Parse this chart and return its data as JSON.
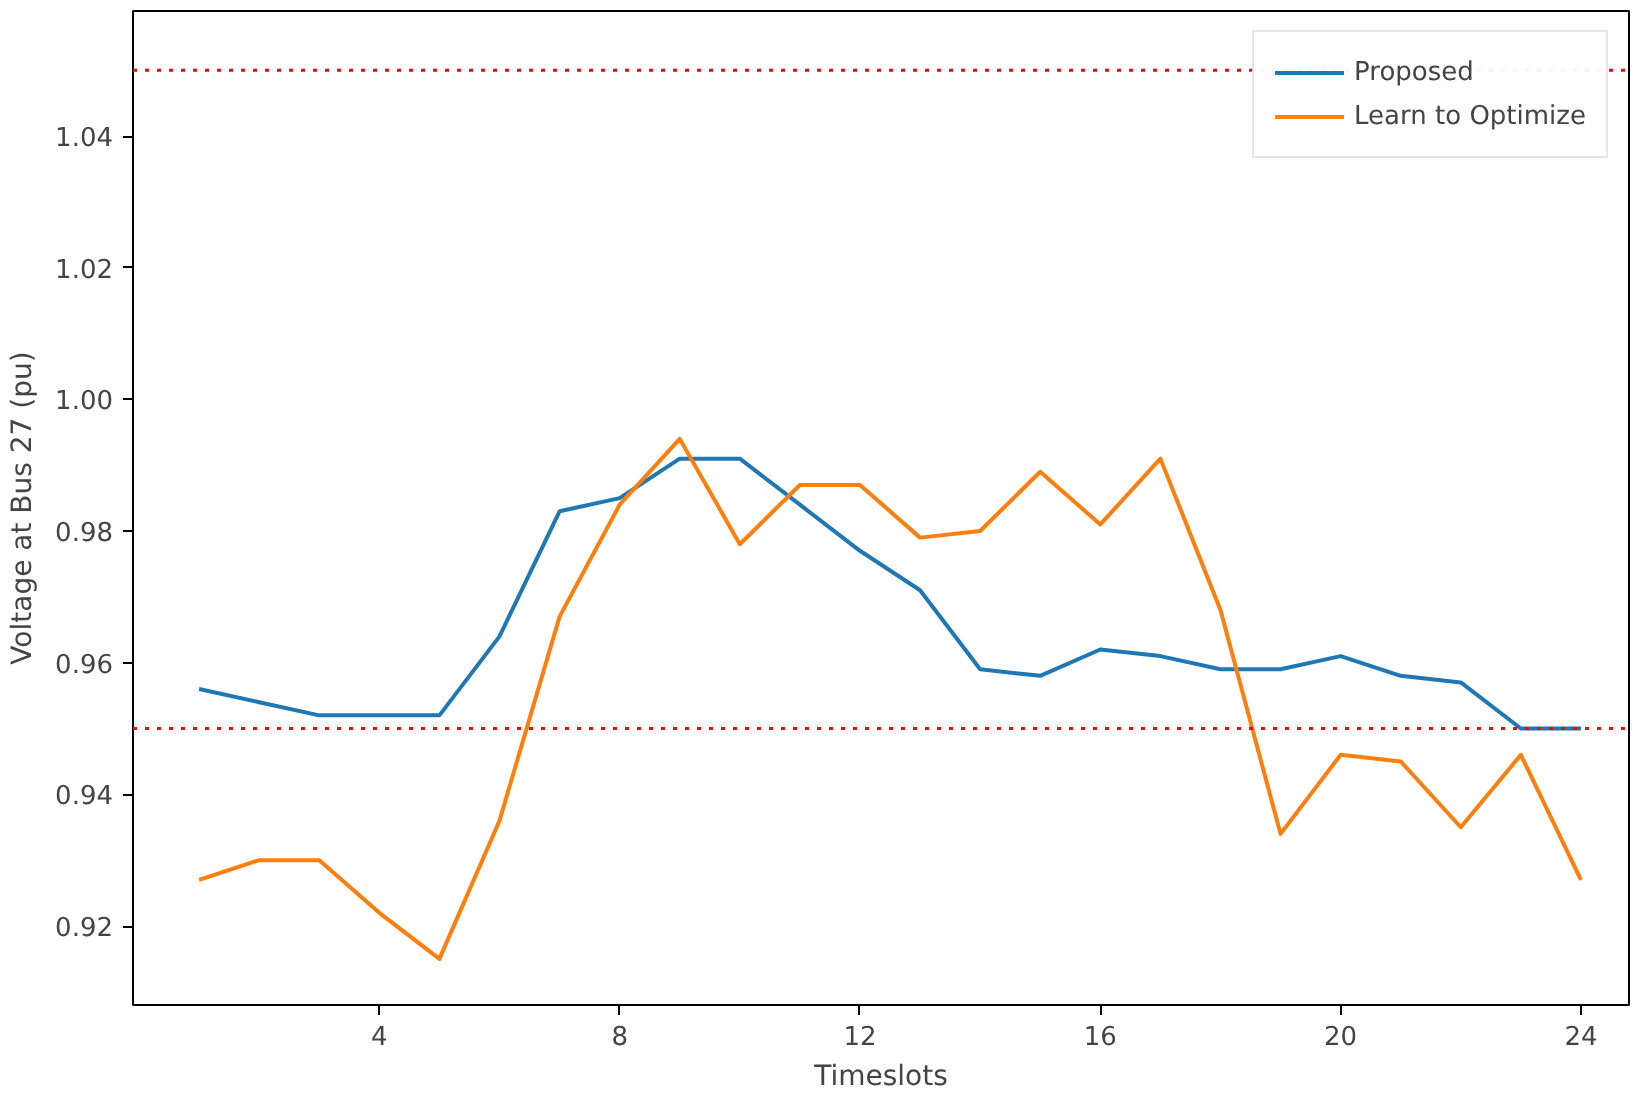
{
  "chart_data": {
    "type": "line",
    "xlabel": "Timeslots",
    "ylabel": "Voltage at Bus 27 (pu)",
    "x": [
      1,
      2,
      3,
      4,
      5,
      6,
      7,
      8,
      9,
      10,
      11,
      12,
      13,
      14,
      15,
      16,
      17,
      18,
      19,
      20,
      21,
      22,
      23,
      24
    ],
    "xlim": [
      -0.1,
      24.8
    ],
    "xticks": [
      4,
      8,
      12,
      16,
      20,
      24
    ],
    "ylim": [
      0.908,
      1.059
    ],
    "yticks": [
      0.92,
      0.94,
      0.96,
      0.98,
      {
        "value": 1.0,
        "label": "1.00"
      },
      1.02,
      1.04
    ],
    "grid": false,
    "legend": "top right",
    "line_style": "solid",
    "marker": "none",
    "ref_lines": [
      {
        "axis": "y",
        "value": 0.95,
        "color": "#ff0000",
        "line_style": "dotted"
      },
      {
        "axis": "y",
        "value": 1.05,
        "color": "#ff0000",
        "line_style": "dotted"
      }
    ],
    "series": [
      {
        "name": "Proposed",
        "color": "#1f77b4",
        "values": [
          0.956,
          0.954,
          0.952,
          0.952,
          0.952,
          0.964,
          0.983,
          0.985,
          0.991,
          0.991,
          0.984,
          0.977,
          0.971,
          0.959,
          0.958,
          0.962,
          0.961,
          0.959,
          0.959,
          0.961,
          0.958,
          0.957,
          0.95,
          0.95
        ]
      },
      {
        "name": "Learn to Optimize",
        "color": "#ff7f0e",
        "values": [
          0.927,
          0.93,
          0.93,
          0.922,
          0.915,
          0.936,
          0.967,
          0.984,
          0.994,
          0.978,
          0.987,
          0.987,
          0.979,
          0.98,
          0.989,
          0.981,
          0.991,
          0.968,
          0.934,
          0.946,
          0.945,
          0.935,
          0.946,
          0.927
        ]
      }
    ]
  }
}
